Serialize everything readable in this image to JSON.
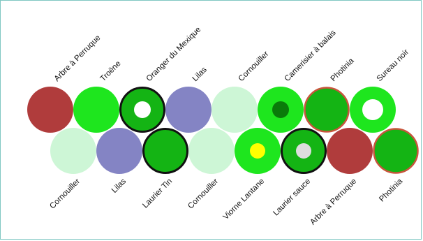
{
  "top_row": [
    {
      "label": "Arbre à Perruque",
      "fill": "#b03c3c",
      "ring": null,
      "inner": null
    },
    {
      "label": "Troëne",
      "fill": "#1ee61e",
      "ring": null,
      "inner": null
    },
    {
      "label": "Oranger du Mexique",
      "fill": "#14b414",
      "ring": "#111111",
      "inner": "#ffffff",
      "inner_size": "medium"
    },
    {
      "label": "Lilas",
      "fill": "#8484c4",
      "ring": null,
      "inner": null
    },
    {
      "label": "Cornouiller",
      "fill": "#cdf6d6",
      "ring": null,
      "inner": null
    },
    {
      "label": "Camerisier à balais",
      "fill": "#1ee61e",
      "ring": null,
      "inner": "#0a7a0a",
      "inner_size": "medium"
    },
    {
      "label": "Photinia",
      "fill": "#14b414",
      "ring": "#c8553c",
      "inner": null
    },
    {
      "label": "Sureau noir",
      "fill": "#1ee61e",
      "ring": null,
      "inner": "#ffffff",
      "inner_size": "large"
    }
  ],
  "bottom_row": [
    {
      "label": "Cornouiller",
      "fill": "#cdf6d6",
      "ring": null,
      "inner": null
    },
    {
      "label": "Lilas",
      "fill": "#8484c4",
      "ring": null,
      "inner": null
    },
    {
      "label": "Laurier Tin",
      "fill": "#14b414",
      "ring": "#111111",
      "inner": null
    },
    {
      "label": "Cornouiller",
      "fill": "#cdf6d6",
      "ring": null,
      "inner": null
    },
    {
      "label": "Viorne Lantane",
      "fill": "#1ee61e",
      "ring": null,
      "inner": "#ffff00",
      "inner_size": "small"
    },
    {
      "label": "Laurier sauce",
      "fill": "#14b414",
      "ring": "#111111",
      "inner": "#dddddd",
      "inner_size": "small"
    },
    {
      "label": "Arbre à Perruque",
      "fill": "#b03c3c",
      "ring": null,
      "inner": null
    },
    {
      "label": "Photinia",
      "fill": "#14b414",
      "ring": "#c8553c",
      "inner": null
    }
  ]
}
